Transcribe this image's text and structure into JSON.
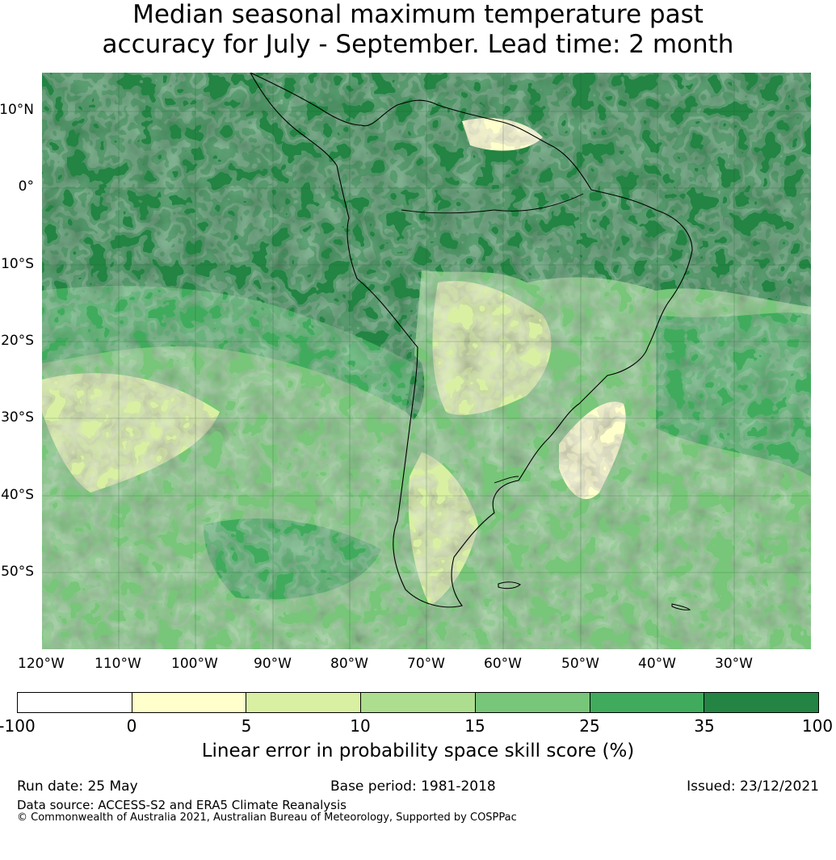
{
  "title": {
    "line1": "Median seasonal maximum temperature past",
    "line2": "accuracy for July - September. Lead time: 2 month"
  },
  "map": {
    "lat_labels": [
      "10°N",
      "0°",
      "10°S",
      "20°S",
      "30°S",
      "40°S",
      "50°S"
    ],
    "lon_labels": [
      "120°W",
      "110°W",
      "100°W",
      "90°W",
      "80°W",
      "70°W",
      "60°W",
      "50°W",
      "40°W",
      "30°W"
    ],
    "extent": {
      "lon": [
        -120,
        -20
      ],
      "lat": [
        -60,
        15
      ]
    },
    "grid": true
  },
  "colorbar": {
    "ticks": [
      "-100",
      "0",
      "5",
      "10",
      "15",
      "25",
      "35",
      "100"
    ],
    "colors": [
      "#ffffff",
      "#ffffcc",
      "#d9f0a3",
      "#addd8e",
      "#78c679",
      "#41ab5d",
      "#238443"
    ],
    "label": "Linear error in probability space skill score (%)"
  },
  "footer": {
    "run_date": "Run date: 25 May",
    "base_period": "Base period: 1981-2018",
    "issued": "Issued: 23/12/2021",
    "data_source": "Data source: ACCESS-S2 and ERA5 Climate Reanalysis",
    "copyright": "© Commonwealth of Australia 2021, Australian Bureau of Meteorology, Supported by COSPPac"
  }
}
